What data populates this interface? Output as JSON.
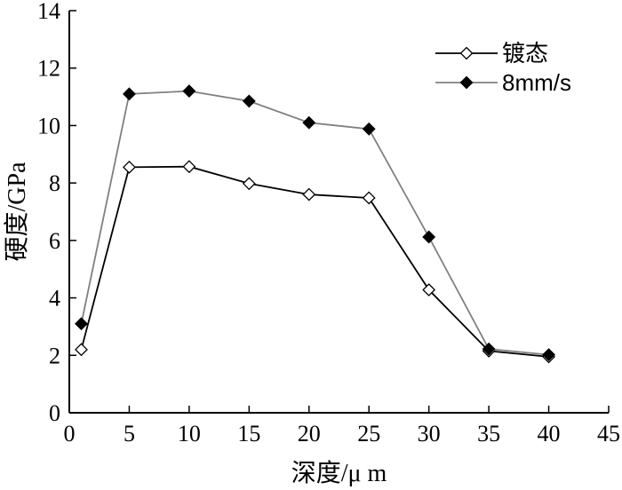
{
  "chart_data": {
    "type": "line",
    "xlabel": "深度/μ m",
    "ylabel": "硬度/GPa",
    "xlim": [
      0,
      45
    ],
    "ylim": [
      0,
      14
    ],
    "xticks": [
      0,
      5,
      10,
      15,
      20,
      25,
      30,
      35,
      40,
      45
    ],
    "yticks": [
      0,
      2,
      4,
      6,
      8,
      10,
      12,
      14
    ],
    "grid": false,
    "legend_position": "top-right",
    "series": [
      {
        "name": "镀态",
        "marker": "diamond-open",
        "color": "#000000",
        "x": [
          1,
          5,
          10,
          15,
          20,
          25,
          30,
          35,
          40
        ],
        "y": [
          2.2,
          8.55,
          8.57,
          7.98,
          7.6,
          7.48,
          4.28,
          2.15,
          1.95
        ]
      },
      {
        "name": "8mm/s",
        "marker": "diamond-filled",
        "color": "#808080",
        "x": [
          1,
          5,
          10,
          15,
          20,
          25,
          30,
          35,
          40
        ],
        "y": [
          3.1,
          11.1,
          11.2,
          10.85,
          10.1,
          9.88,
          6.12,
          2.22,
          2.02
        ]
      }
    ]
  }
}
